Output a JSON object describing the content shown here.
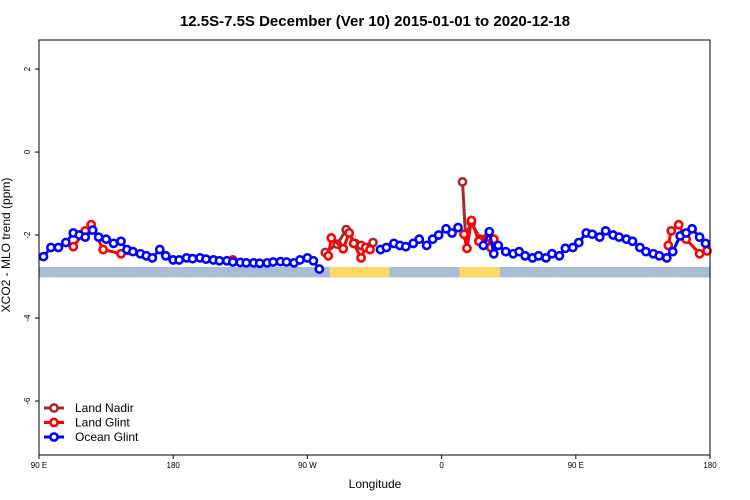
{
  "chart_data": {
    "type": "line",
    "title": "12.5S-7.5S December (Ver 10)   2015-01-01 to 2020-12-18",
    "xlabel": "Longitude",
    "ylabel": "XCO2 - MLO trend (ppm)",
    "x_ticks": [
      {
        "value": 90,
        "label": "90 E"
      },
      {
        "value": 180,
        "label": "180"
      },
      {
        "value": 270,
        "label": "90 W"
      },
      {
        "value": 360,
        "label": "0"
      },
      {
        "value": 450,
        "label": "90 E"
      },
      {
        "value": 540,
        "label": "180"
      }
    ],
    "y_ticks": [
      {
        "value": 2,
        "label": "2"
      },
      {
        "value": 0,
        "label": "0"
      },
      {
        "value": -2,
        "label": "-2"
      },
      {
        "value": -4,
        "label": "-4"
      },
      {
        "value": -6,
        "label": "-6"
      }
    ],
    "xlim": [
      90,
      540
    ],
    "ylim": [
      -7.3,
      2.7
    ],
    "grid": false,
    "legend_position": "bottom-left",
    "land_strip": {
      "y_range": [
        -3.02,
        -2.77
      ],
      "ocean_color": "#aabbd6",
      "land_color": "#ffd966",
      "land_segments": [
        [
          285,
          325
        ],
        [
          372,
          399
        ]
      ]
    },
    "series": [
      {
        "name": "Land Nadir",
        "color": "#a52a2a",
        "points": [
          [
            282,
            -2.42
          ],
          [
            290,
            -2.22
          ],
          [
            296,
            -1.87
          ],
          [
            298,
            -1.95
          ],
          [
            302,
            -2.2
          ],
          [
            306,
            -2.25
          ],
          [
            310,
            -2.3
          ],
          [
            314,
            -2.18
          ],
          [
            374,
            -0.72
          ],
          [
            376,
            -2.0
          ],
          [
            380,
            -1.7
          ],
          [
            386,
            -2.1
          ],
          [
            390,
            -2.18
          ],
          [
            394,
            -2.28
          ]
        ]
      },
      {
        "name": "Land Glint",
        "color": "#ff0000",
        "points": [
          [
            113,
            -2.28
          ],
          [
            121,
            -1.9
          ],
          [
            125,
            -1.75
          ],
          [
            133,
            -2.35
          ],
          [
            145,
            -2.45
          ],
          [
            150,
            -2.37
          ],
          [
            220,
            -2.6
          ],
          [
            284,
            -2.5
          ],
          [
            286,
            -2.07
          ],
          [
            294,
            -2.33
          ],
          [
            298,
            -1.95
          ],
          [
            301,
            -2.2
          ],
          [
            306,
            -2.55
          ],
          [
            309,
            -2.3
          ],
          [
            312,
            -2.35
          ],
          [
            375,
            -1.98
          ],
          [
            377,
            -2.32
          ],
          [
            380,
            -1.65
          ],
          [
            385,
            -2.15
          ],
          [
            391,
            -2.05
          ],
          [
            393,
            -2.3
          ],
          [
            395,
            -2.1
          ],
          [
            512,
            -2.25
          ],
          [
            514,
            -1.9
          ],
          [
            519,
            -1.75
          ],
          [
            524,
            -2.1
          ],
          [
            533,
            -2.45
          ],
          [
            538,
            -2.38
          ]
        ]
      },
      {
        "name": "Ocean Glint",
        "color": "#0000ff",
        "points": [
          [
            93,
            -2.52
          ],
          [
            98,
            -2.3
          ],
          [
            103,
            -2.3
          ],
          [
            108,
            -2.18
          ],
          [
            113,
            -1.95
          ],
          [
            117,
            -2.0
          ],
          [
            121,
            -2.05
          ],
          [
            126,
            -1.88
          ],
          [
            130,
            -2.05
          ],
          [
            135,
            -2.1
          ],
          [
            140,
            -2.2
          ],
          [
            145,
            -2.15
          ],
          [
            149,
            -2.35
          ],
          [
            153,
            -2.4
          ],
          [
            158,
            -2.45
          ],
          [
            162,
            -2.5
          ],
          [
            166,
            -2.55
          ],
          [
            171,
            -2.35
          ],
          [
            175,
            -2.5
          ],
          [
            180,
            -2.6
          ],
          [
            184,
            -2.6
          ],
          [
            189,
            -2.55
          ],
          [
            193,
            -2.57
          ],
          [
            198,
            -2.55
          ],
          [
            202,
            -2.58
          ],
          [
            207,
            -2.6
          ],
          [
            211,
            -2.62
          ],
          [
            216,
            -2.62
          ],
          [
            220,
            -2.65
          ],
          [
            225,
            -2.66
          ],
          [
            229,
            -2.67
          ],
          [
            234,
            -2.67
          ],
          [
            238,
            -2.68
          ],
          [
            243,
            -2.67
          ],
          [
            247,
            -2.65
          ],
          [
            252,
            -2.64
          ],
          [
            256,
            -2.65
          ],
          [
            261,
            -2.67
          ],
          [
            265,
            -2.6
          ],
          [
            270,
            -2.55
          ],
          [
            274,
            -2.62
          ],
          [
            278,
            -2.82
          ],
          [
            319,
            -2.35
          ],
          [
            323,
            -2.3
          ],
          [
            328,
            -2.2
          ],
          [
            332,
            -2.25
          ],
          [
            336,
            -2.28
          ],
          [
            341,
            -2.2
          ],
          [
            345,
            -2.1
          ],
          [
            350,
            -2.25
          ],
          [
            354,
            -2.1
          ],
          [
            358,
            -2.0
          ],
          [
            363,
            -1.85
          ],
          [
            367,
            -1.95
          ],
          [
            371,
            -1.82
          ],
          [
            388,
            -2.25
          ],
          [
            392,
            -1.92
          ],
          [
            395,
            -2.45
          ],
          [
            398,
            -2.25
          ],
          [
            403,
            -2.4
          ],
          [
            408,
            -2.45
          ],
          [
            412,
            -2.4
          ],
          [
            416,
            -2.5
          ],
          [
            421,
            -2.55
          ],
          [
            425,
            -2.5
          ],
          [
            430,
            -2.55
          ],
          [
            434,
            -2.45
          ],
          [
            439,
            -2.5
          ],
          [
            443,
            -2.32
          ],
          [
            448,
            -2.3
          ],
          [
            452,
            -2.18
          ],
          [
            457,
            -1.95
          ],
          [
            461,
            -1.98
          ],
          [
            466,
            -2.05
          ],
          [
            470,
            -1.9
          ],
          [
            475,
            -2.0
          ],
          [
            479,
            -2.05
          ],
          [
            484,
            -2.1
          ],
          [
            488,
            -2.15
          ],
          [
            493,
            -2.3
          ],
          [
            497,
            -2.4
          ],
          [
            502,
            -2.45
          ],
          [
            506,
            -2.5
          ],
          [
            511,
            -2.55
          ],
          [
            515,
            -2.4
          ],
          [
            520,
            -2.02
          ],
          [
            524,
            -1.95
          ],
          [
            528,
            -1.85
          ],
          [
            533,
            -2.05
          ],
          [
            537,
            -2.2
          ]
        ]
      }
    ]
  }
}
